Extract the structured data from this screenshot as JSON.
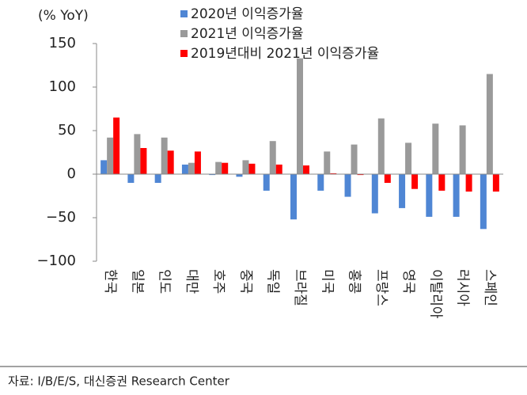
{
  "chart_data": {
    "type": "bar",
    "y_label": "(% YoY)",
    "categories": [
      "한국",
      "일본",
      "인도",
      "대만",
      "호주",
      "중국",
      "독일",
      "브라질",
      "미국",
      "홍콩",
      "프랑스",
      "영국",
      "이탈리아",
      "러시아",
      "스페인"
    ],
    "series": [
      {
        "name": "2020년 이익증가율",
        "color": "#4f86d4",
        "values": [
          16,
          -10,
          -10,
          11,
          -1,
          -3,
          -19,
          -52,
          -19,
          -26,
          -45,
          -39,
          -49,
          -49,
          -63
        ]
      },
      {
        "name": "2021년 이익증가율",
        "color": "#9a9a9a",
        "values": [
          42,
          46,
          42,
          13,
          14,
          16,
          38,
          133,
          26,
          34,
          64,
          36,
          58,
          56,
          115
        ]
      },
      {
        "name": "2019년대비 2021년 이익증가율",
        "color": "#ff0000",
        "values": [
          65,
          30,
          27,
          26,
          13,
          12,
          11,
          10,
          1,
          -1,
          -10,
          -17,
          -19,
          -20,
          -20
        ]
      }
    ],
    "ylim": [
      -100,
      150
    ],
    "yticks": [
      {
        "value": -100,
        "label": "−100"
      },
      {
        "value": -50,
        "label": "−50"
      },
      0,
      50,
      100,
      150
    ],
    "source": "자료: I/B/E/S, 대신증권 Research Center"
  }
}
